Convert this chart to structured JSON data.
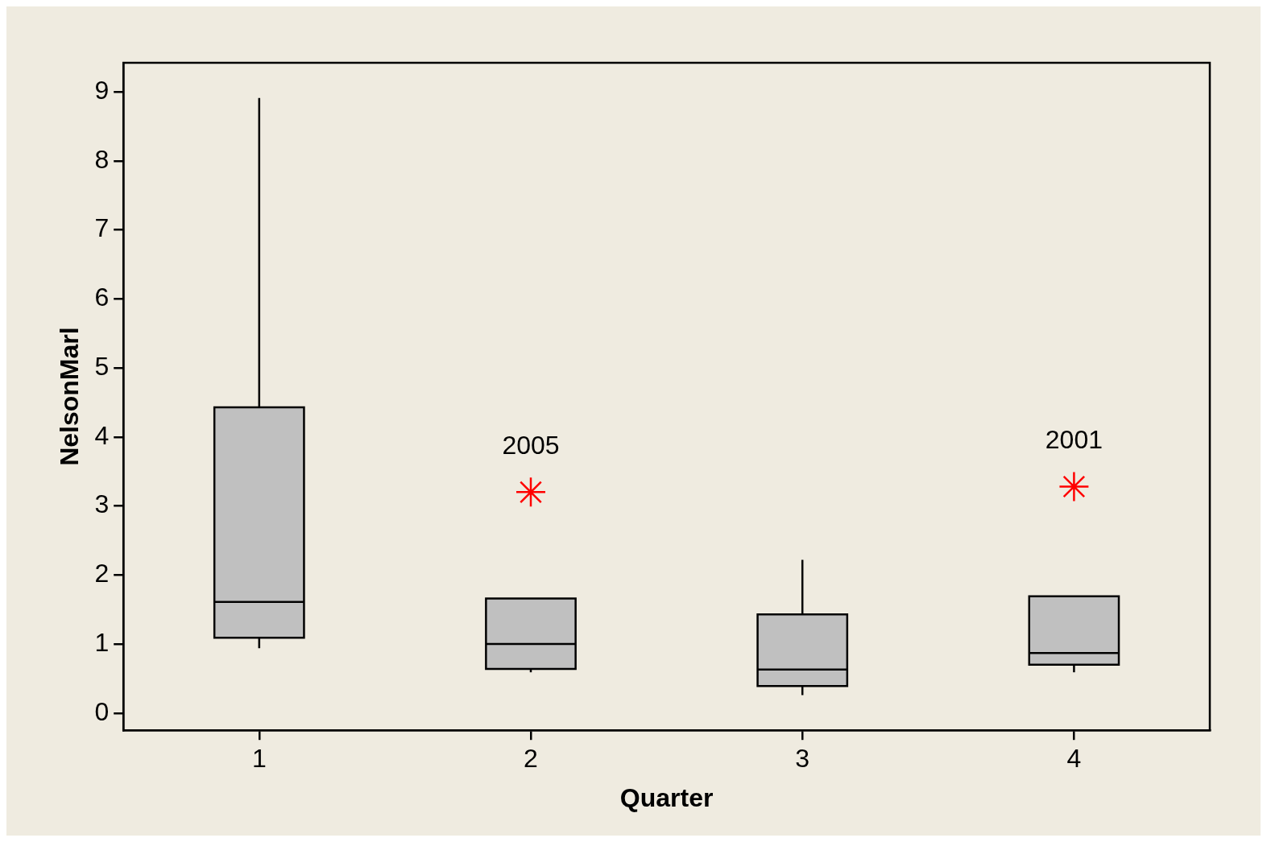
{
  "chart_data": {
    "type": "box",
    "xlabel": "Quarter",
    "ylabel": "NelsonMarl",
    "categories": [
      "1",
      "2",
      "3",
      "4"
    ],
    "ylim": [
      -0.25,
      9.42
    ],
    "yticks": [
      0,
      1,
      2,
      3,
      4,
      5,
      6,
      7,
      8,
      9
    ],
    "grid": false,
    "legend": false,
    "series": [
      {
        "color": "#c0c0c0",
        "boxes": [
          {
            "low": 0.94,
            "q1": 1.09,
            "median": 1.61,
            "q3": 4.43,
            "high": 8.91
          },
          {
            "low": 0.59,
            "q1": 0.64,
            "median": 1.0,
            "q3": 1.66,
            "high": 1.66
          },
          {
            "low": 0.26,
            "q1": 0.39,
            "median": 0.63,
            "q3": 1.43,
            "high": 2.22
          },
          {
            "low": 0.59,
            "q1": 0.7,
            "median": 0.87,
            "q3": 1.69,
            "high": 1.69
          }
        ]
      },
      {
        "type": "scatter",
        "color": "#ff0000",
        "marker": "cross",
        "x": [
          "2",
          "4"
        ],
        "values": [
          3.2,
          3.28
        ]
      }
    ],
    "annotations": [
      {
        "text": "2005",
        "x": "2",
        "y": 3.2
      },
      {
        "text": "2001",
        "x": "4",
        "y": 3.28
      }
    ]
  }
}
